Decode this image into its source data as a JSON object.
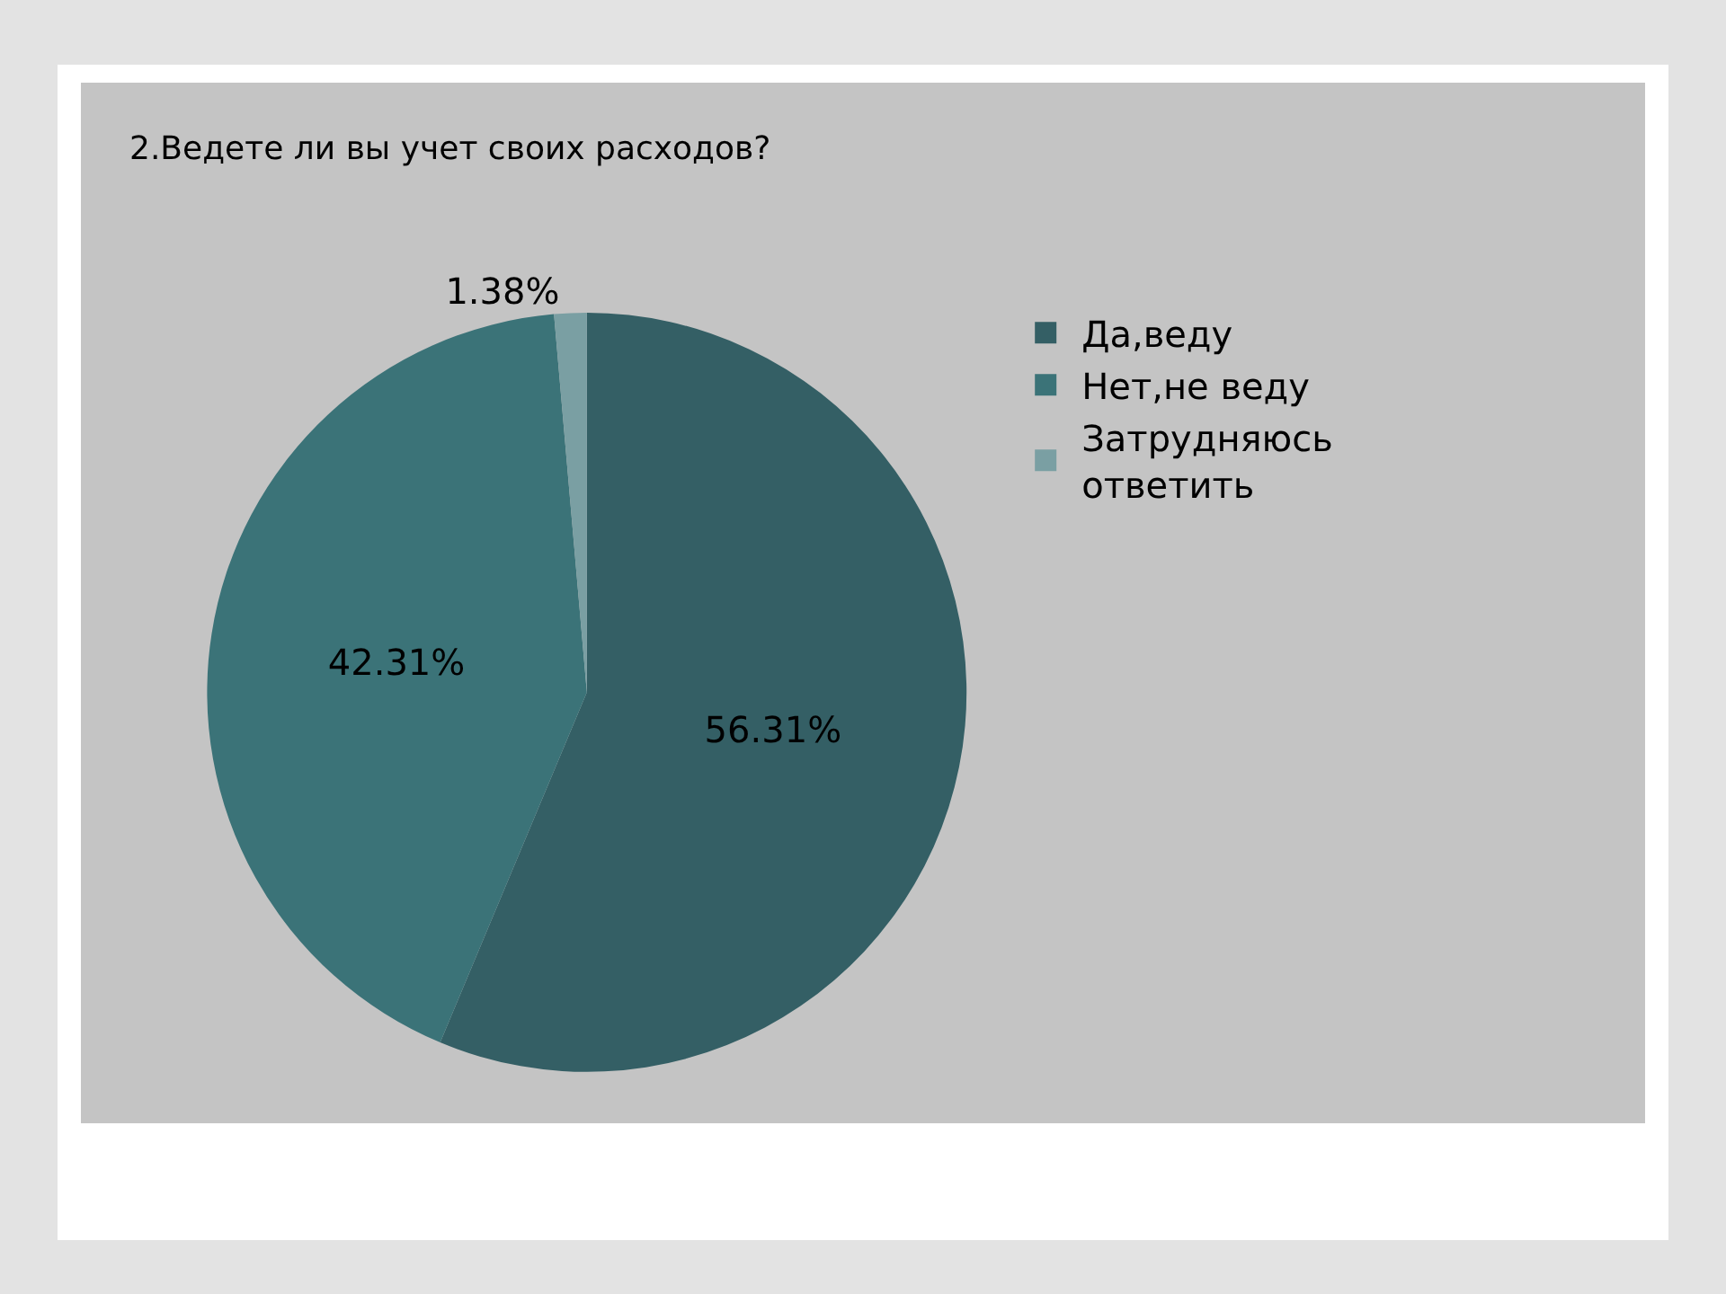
{
  "chart_data": {
    "type": "pie",
    "title": "2.Ведете ли вы учет своих расходов?",
    "categories": [
      "Да,веду",
      "Нет,не веду",
      "Затрудняюсь ответить"
    ],
    "values": [
      56.31,
      42.31,
      1.38
    ],
    "value_labels": [
      "56.31%",
      "42.31%",
      "1.38%"
    ],
    "colors": [
      "#345f65",
      "#3b7378",
      "#7a9fa3"
    ],
    "legend": "right"
  }
}
